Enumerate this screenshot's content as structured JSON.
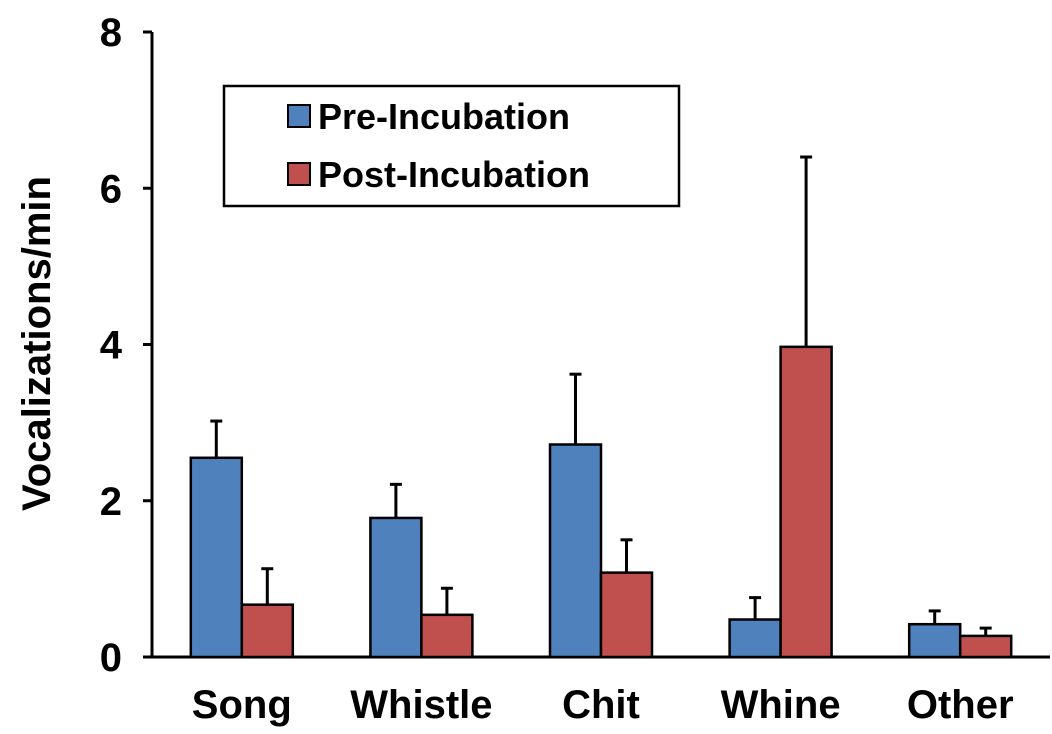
{
  "chart_data": {
    "type": "bar",
    "title": "",
    "xlabel": "",
    "ylabel": "Vocalizations/min",
    "ylim": [
      0,
      8
    ],
    "yticks": [
      0,
      2,
      4,
      6,
      8
    ],
    "categories": [
      "Song",
      "Whistle",
      "Chit",
      "Whine",
      "Other"
    ],
    "series": [
      {
        "name": "Pre-Incubation",
        "color": "#4f81bd",
        "values": [
          2.55,
          1.78,
          2.72,
          0.48,
          0.42
        ],
        "errors": [
          0.47,
          0.43,
          0.9,
          0.28,
          0.17
        ]
      },
      {
        "name": "Post-Incubation",
        "color": "#c0504d",
        "values": [
          0.67,
          0.54,
          1.08,
          3.97,
          0.27
        ],
        "errors": [
          0.46,
          0.34,
          0.42,
          2.43,
          0.1
        ]
      }
    ],
    "legend_position": "top-left",
    "grid": false
  }
}
